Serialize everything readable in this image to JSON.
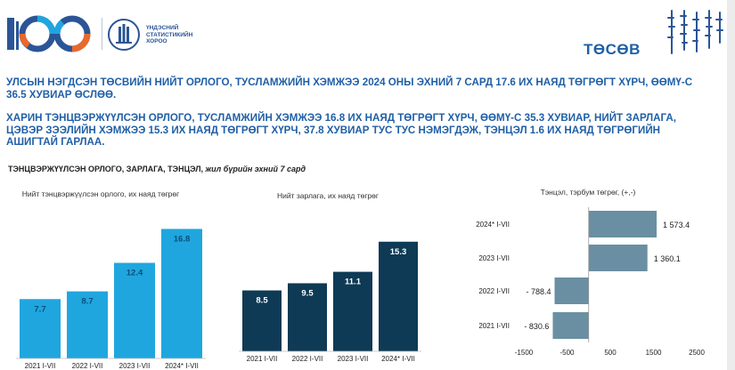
{
  "header": {
    "logo_text": "100",
    "org_name_lines": [
      "ҮНДЭСНИЙ",
      "СТАТИСТИКИЙН",
      "ХОРОО"
    ],
    "topic": "ТӨСӨВ",
    "colors": {
      "brand_blue": "#1f5fa6",
      "accent_orange": "#e8692b"
    }
  },
  "headline": {
    "line1": "УЛСЫН НЭГДСЭН ТӨСВИЙН НИЙТ ОРЛОГО, ТУСЛАМЖИЙН ХЭМЖЭЭ 2024 ОНЫ ЭХНИЙ 7 САРД 17.6 ИХ НАЯД ТӨГРӨГТ ХҮРЧ, ӨӨМҮ-С 36.5 ХУВИАР ӨСЛӨӨ.",
    "line2": "ХАРИН ТЭНЦВЭРЖҮҮЛСЭН ОРЛОГО, ТУСЛАМЖИЙН ХЭМЖЭЭ 16.8 ИХ НАЯД ТӨГРӨГТ ХҮРЧ, ӨӨМҮ-С 35.3 ХУВИАР, НИЙТ ЗАРЛАГА, ЦЭВЭР ЗЭЭЛИЙН ХЭМЖЭЭ 15.3 ИХ НАЯД ТӨГРӨГТ ХҮРЧ, 37.8 ХУВИАР ТУС ТУС НЭМЭГДЭЖ, ТЭНЦЭЛ 1.6 ИХ НАЯД ТӨГРӨГИЙН АШИГТАЙ ГАРЛАА."
  },
  "section": {
    "title": "ТЭНЦВЭРЖҮҮЛСЭН ОРЛОГО, ЗАРЛАГА, ТЭНЦЭЛ,",
    "subtitle": "жил бүрийн эхний 7 сард"
  },
  "chart_data": [
    {
      "type": "bar",
      "title": "Нийт тэнцвэржүүлсэн орлого, их наяд төгрөг",
      "categories": [
        "2021 I-VII",
        "2022 I-VII",
        "2023 I-VII",
        "2024* I-VII"
      ],
      "values": [
        7.7,
        8.7,
        12.4,
        16.8
      ],
      "value_labels": [
        "7.7",
        "8.7",
        "12.4",
        "16.8"
      ],
      "ylim": [
        0,
        18
      ],
      "color": "#1fa6df",
      "label_color": "#0b4f7a",
      "grid": false
    },
    {
      "type": "bar",
      "title": "Нийт зарлага, их наяд төгрөг",
      "categories": [
        "2021 I-VII",
        "2022 I-VII",
        "2023 I-VII",
        "2024* I-VII"
      ],
      "values": [
        8.5,
        9.5,
        11.1,
        15.3
      ],
      "value_labels": [
        "8.5",
        "9.5",
        "11.1",
        "15.3"
      ],
      "ylim": [
        0,
        18
      ],
      "color": "#0e3a55",
      "label_color": "#ffffff",
      "grid": false
    },
    {
      "type": "bar",
      "orientation": "horizontal",
      "title": "Тэнцэл, тэрбум төгрөг, (+,-)",
      "categories": [
        "2024* I-VII",
        "2023 I-VII",
        "2022 I-VII",
        "2021 I-VII"
      ],
      "values": [
        1573.4,
        1360.1,
        -788.4,
        -830.6
      ],
      "value_labels": [
        "1 573.4",
        "1 360.1",
        "- 788.4",
        "- 830.6"
      ],
      "xlim": [
        -1500,
        2500
      ],
      "xticks": [
        -1500,
        -500,
        500,
        1500,
        2500
      ],
      "xtick_labels": [
        "-1500",
        "-500",
        "500",
        "1500",
        "2500"
      ],
      "color": "#6a8fa2",
      "grid": false
    }
  ]
}
